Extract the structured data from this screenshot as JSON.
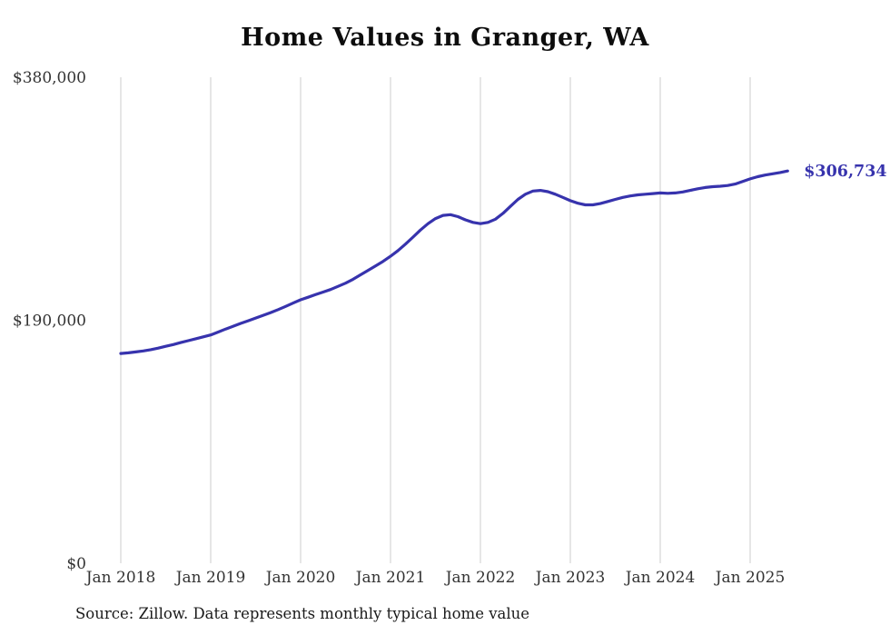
{
  "chart_data": {
    "type": "line",
    "title": "Home Values in Granger, WA",
    "source_note": "Source: Zillow. Data represents monthly typical home value",
    "end_label": "$306,734",
    "end_value": 306734,
    "unit": "USD",
    "line_color": "#3733ad",
    "grid_color": "#cccccc",
    "ylim": [
      0,
      380000
    ],
    "y_ticks": [
      {
        "label": "$380,000",
        "value": 380000
      },
      {
        "label": "$190,000",
        "value": 190000
      },
      {
        "label": "$0",
        "value": 0
      }
    ],
    "x_start": "2018-01",
    "x_interval": "monthly",
    "x_tick_labels": [
      "Jan 2018",
      "Jan 2019",
      "Jan 2020",
      "Jan 2021",
      "Jan 2022",
      "Jan 2023",
      "Jan 2024",
      "Jan 2025"
    ],
    "legend": "none",
    "grid": "vertical-only",
    "values": [
      164000,
      164500,
      165200,
      166000,
      167000,
      168200,
      169600,
      171000,
      172500,
      174000,
      175500,
      177000,
      178500,
      180800,
      183100,
      185300,
      187500,
      189600,
      191700,
      193800,
      196000,
      198300,
      200800,
      203400,
      206000,
      208000,
      210000,
      212000,
      214000,
      216500,
      219000,
      222000,
      225500,
      229000,
      232500,
      236000,
      240000,
      244500,
      249500,
      255000,
      260500,
      265500,
      269500,
      272000,
      272500,
      271000,
      268500,
      266500,
      265500,
      266500,
      269000,
      273500,
      279000,
      284500,
      288500,
      291000,
      291500,
      290500,
      288500,
      286000,
      283500,
      281500,
      280200,
      280200,
      281200,
      282800,
      284500,
      286000,
      287200,
      288000,
      288500,
      289000,
      289500,
      289200,
      289500,
      290300,
      291500,
      292800,
      293800,
      294400,
      294800,
      295300,
      296500,
      298500,
      300500,
      302200,
      303500,
      304500,
      305500,
      306734
    ]
  }
}
